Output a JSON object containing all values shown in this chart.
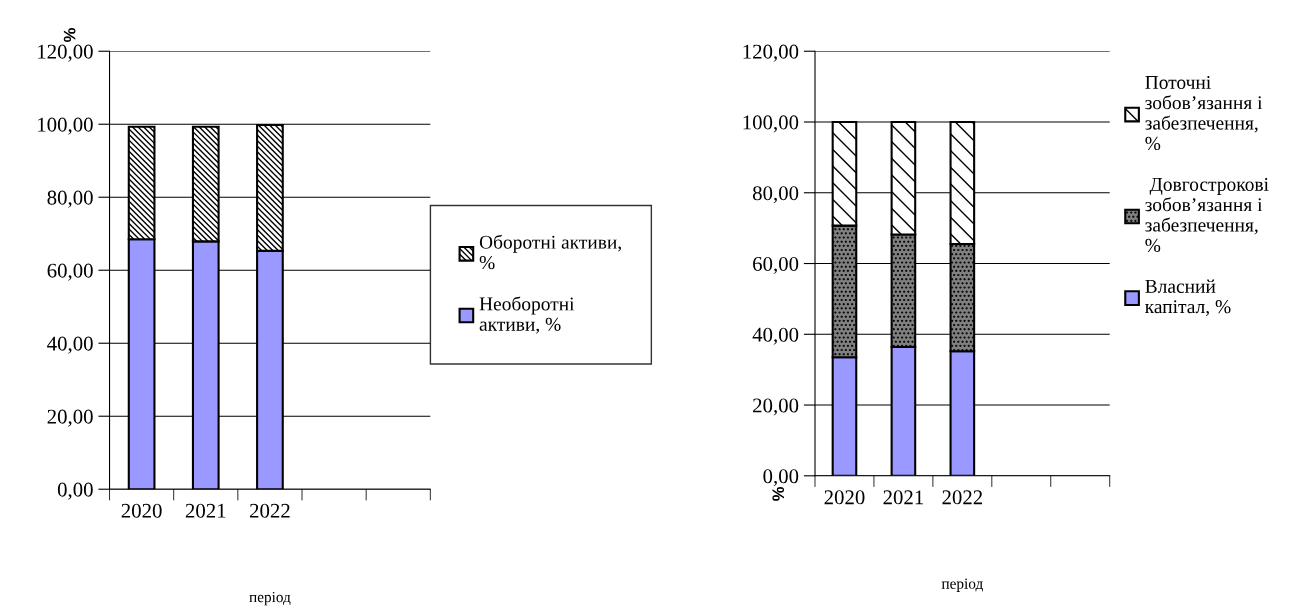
{
  "chart_data": [
    {
      "type": "bar",
      "stacked": true,
      "categories": [
        "2020",
        "2021",
        "2022",
        null,
        null
      ],
      "xlabel": "період",
      "ylabel": "%",
      "ylim": [
        0,
        120
      ],
      "yticks": [
        {
          "value": 0,
          "label": "0,00"
        },
        {
          "value": 20,
          "label": "20,00"
        },
        {
          "value": 40,
          "label": "40,00"
        },
        {
          "value": 60,
          "label": "60,00"
        },
        {
          "value": 80,
          "label": "80,00"
        },
        {
          "value": 100,
          "label": "100,00"
        },
        {
          "value": 120,
          "label": "120,00"
        }
      ],
      "grid": "y",
      "legend": "right",
      "series": [
        {
          "name": "Необоротні\nактиви, %",
          "color": "#9999ff",
          "values": [
            68.5,
            67.9,
            65.3,
            null,
            null
          ]
        },
        {
          "name": "Оборотні активи,\n%",
          "color": "#000000",
          "values": [
            30.8,
            31.4,
            34.5,
            null,
            null
          ]
        }
      ]
    },
    {
      "type": "bar",
      "stacked": true,
      "categories": [
        "2020",
        "2021",
        "2022",
        null,
        null
      ],
      "xlabel": "період",
      "ylabel": "%",
      "ylim": [
        0,
        120
      ],
      "yticks": [
        {
          "value": 0,
          "label": "0,00"
        },
        {
          "value": 20,
          "label": "20,00"
        },
        {
          "value": 40,
          "label": "40,00"
        },
        {
          "value": 60,
          "label": "60,00"
        },
        {
          "value": 80,
          "label": "80,00"
        },
        {
          "value": 100,
          "label": "100,00"
        },
        {
          "value": 120,
          "label": "120,00"
        }
      ],
      "grid": "y",
      "legend": "right",
      "series": [
        {
          "name": "Власний\nкапітал, %",
          "color": "#9999ff",
          "values": [
            33.5,
            36.4,
            35.2,
            null,
            null
          ]
        },
        {
          "name": " Довгострокові\nзобов’язання і\nзабезпечення,\n%",
          "color": "#000000",
          "values": [
            37.2,
            31.8,
            30.3,
            null,
            null
          ]
        },
        {
          "name": "Поточні\nзобов’язання і\nзабезпечення,\n%",
          "color": "#000000",
          "values": [
            29.3,
            31.8,
            34.5,
            null,
            null
          ]
        }
      ]
    }
  ]
}
